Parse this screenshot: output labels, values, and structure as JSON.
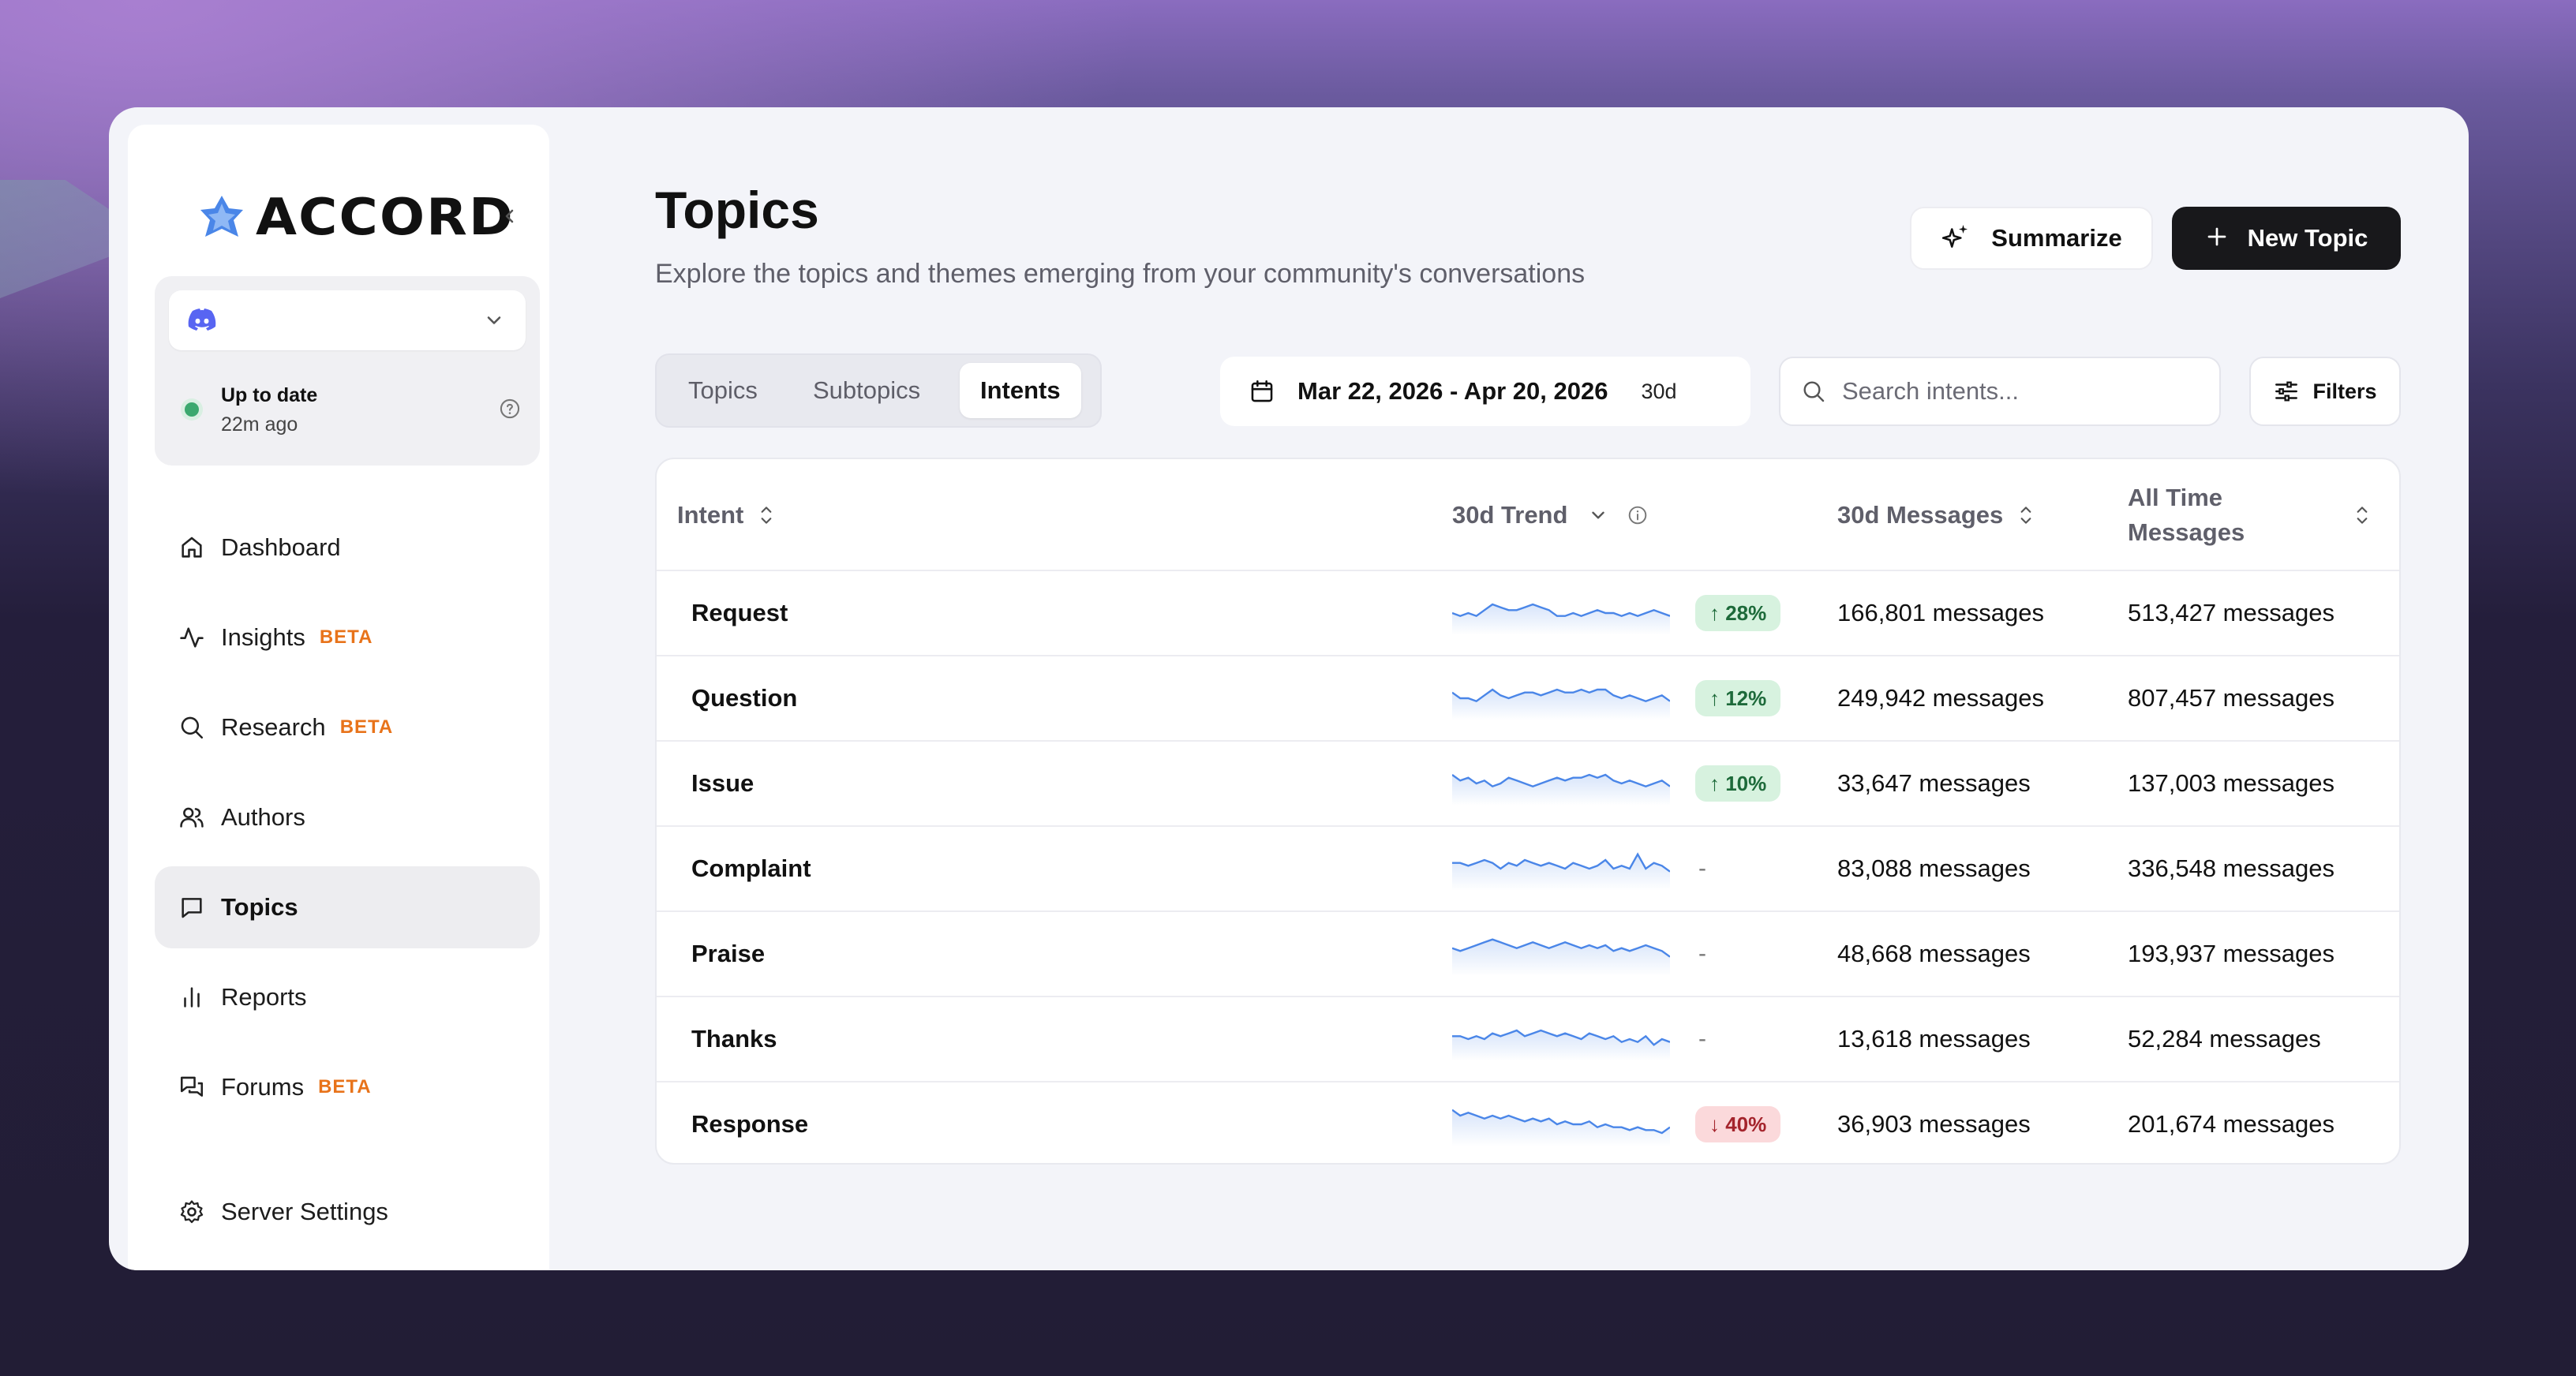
{
  "app": {
    "name": "ACCORD",
    "colors": {
      "accent": "#4a86e8",
      "beta": "#e8731a",
      "up_bg": "#d7f2df",
      "down_bg": "#fbd9db",
      "primary_btn": "#18181b"
    }
  },
  "sidebar": {
    "server_select": {
      "icon": "discord-icon",
      "value": ""
    },
    "sync": {
      "status": "Up to date",
      "time": "22m ago"
    },
    "nav": [
      {
        "label": "Dashboard",
        "icon": "home-icon",
        "beta": ""
      },
      {
        "label": "Insights",
        "icon": "activity-icon",
        "beta": "BETA"
      },
      {
        "label": "Research",
        "icon": "search-icon",
        "beta": "BETA"
      },
      {
        "label": "Authors",
        "icon": "users-icon",
        "beta": ""
      },
      {
        "label": "Topics",
        "icon": "message-square-icon",
        "beta": "",
        "active": true
      },
      {
        "label": "Reports",
        "icon": "bar-chart-icon",
        "beta": ""
      },
      {
        "label": "Forums",
        "icon": "messages-icon",
        "beta": "BETA"
      },
      {
        "label": "Server Settings",
        "icon": "gear-icon",
        "beta": ""
      }
    ]
  },
  "header": {
    "title": "Topics",
    "subtitle": "Explore the topics and themes emerging from your community's conversations",
    "summarize_label": "Summarize",
    "new_topic_label": "New Topic"
  },
  "toolbar": {
    "tabs": [
      {
        "label": "Topics",
        "active": false
      },
      {
        "label": "Subtopics",
        "active": false
      },
      {
        "label": "Intents",
        "active": true
      }
    ],
    "date_range": "Mar 22, 2026 - Apr 20, 2026",
    "period": "30d",
    "search_placeholder": "Search intents...",
    "filters_label": "Filters"
  },
  "table": {
    "columns": {
      "intent": "Intent",
      "trend": "30d Trend",
      "messages_30d": "30d Messages",
      "messages_all": "All Time Messages"
    },
    "rows": [
      {
        "intent": "Request",
        "change": "↑ 28%",
        "direction": "up",
        "messages_30d": "166,801 messages",
        "messages_all": "513,427 messages",
        "spark": [
          6,
          5,
          6,
          5,
          7,
          9,
          8,
          7,
          7,
          8,
          9,
          8,
          7,
          5,
          5,
          6,
          5,
          6,
          7,
          6,
          6,
          5,
          6,
          5,
          6,
          7,
          6,
          5
        ]
      },
      {
        "intent": "Question",
        "change": "↑ 12%",
        "direction": "up",
        "messages_30d": "249,942 messages",
        "messages_all": "807,457 messages",
        "spark": [
          8,
          6,
          6,
          5,
          7,
          9,
          7,
          6,
          7,
          8,
          8,
          7,
          8,
          9,
          8,
          8,
          9,
          8,
          9,
          9,
          7,
          6,
          7,
          6,
          5,
          6,
          7,
          5
        ]
      },
      {
        "intent": "Issue",
        "change": "↑ 10%",
        "direction": "up",
        "messages_30d": "33,647 messages",
        "messages_all": "137,003 messages",
        "spark": [
          9,
          7,
          8,
          6,
          7,
          5,
          6,
          8,
          7,
          6,
          5,
          6,
          7,
          8,
          7,
          8,
          8,
          9,
          8,
          9,
          7,
          6,
          7,
          6,
          5,
          6,
          7,
          5
        ]
      },
      {
        "intent": "Complaint",
        "change": "-",
        "direction": "none",
        "messages_30d": "83,088 messages",
        "messages_all": "336,548 messages",
        "spark": [
          8,
          8,
          7,
          8,
          9,
          8,
          6,
          8,
          7,
          9,
          8,
          7,
          8,
          7,
          6,
          8,
          7,
          6,
          7,
          9,
          6,
          7,
          6,
          11,
          6,
          8,
          7,
          5
        ]
      },
      {
        "intent": "Praise",
        "change": "-",
        "direction": "none",
        "messages_30d": "48,668 messages",
        "messages_all": "193,937 messages",
        "spark": [
          8,
          7,
          8,
          9,
          10,
          11,
          10,
          9,
          8,
          9,
          10,
          9,
          8,
          9,
          10,
          9,
          8,
          9,
          8,
          9,
          7,
          8,
          7,
          8,
          9,
          8,
          7,
          5
        ]
      },
      {
        "intent": "Thanks",
        "change": "-",
        "direction": "none",
        "messages_30d": "13,618 messages",
        "messages_all": "52,284 messages",
        "spark": [
          7,
          7,
          6,
          7,
          6,
          8,
          7,
          8,
          9,
          7,
          8,
          9,
          8,
          7,
          8,
          7,
          6,
          8,
          7,
          6,
          7,
          5,
          6,
          5,
          7,
          4,
          6,
          5
        ]
      },
      {
        "intent": "Response",
        "change": "↓ 40%",
        "direction": "down",
        "messages_30d": "36,903 messages",
        "messages_all": "201,674 messages",
        "spark": [
          11,
          9,
          10,
          9,
          8,
          9,
          8,
          9,
          8,
          7,
          8,
          7,
          8,
          6,
          7,
          6,
          6,
          7,
          5,
          6,
          5,
          5,
          4,
          5,
          4,
          4,
          3,
          5
        ]
      }
    ]
  }
}
